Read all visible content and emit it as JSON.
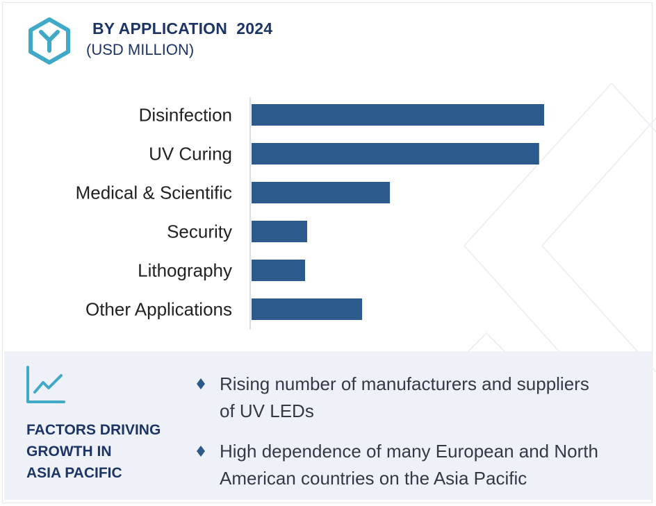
{
  "header": {
    "title": "BY APPLICATION  2024",
    "subtitle": "(USD MILLION)"
  },
  "colors": {
    "bar": "#2d5a8c",
    "heading": "#1d3566",
    "accent": "#3fa9c7",
    "panel_bg": "#eef1f7",
    "body_text": "#333a45"
  },
  "icons": {
    "logo": "hexagon-y-logo-icon",
    "factors": "trend-line-chart-icon",
    "bullet": "diamond-bullet-icon"
  },
  "chart_data": {
    "type": "bar",
    "orientation": "horizontal",
    "title": "BY APPLICATION  2024",
    "subtitle": "(USD MILLION)",
    "categories": [
      "Disinfection",
      "UV Curing",
      "Medical & Scientific",
      "Security",
      "Lithography",
      "Other Applications"
    ],
    "values": [
      100,
      98.3,
      47.3,
      19.0,
      18.3,
      37.8
    ],
    "value_axis": {
      "shown": false,
      "range": [
        0,
        100
      ]
    },
    "grid": false,
    "legend": "none"
  },
  "factors": {
    "title_lines": [
      "FACTORS DRIVING",
      "GROWTH IN",
      "ASIA PACIFIC"
    ],
    "bullets": [
      {
        "lines": [
          "Rising number of manufacturers and suppliers",
          "of UV LEDs"
        ]
      },
      {
        "lines": [
          "High dependence of many European and North",
          "American countries on the Asia Pacific"
        ]
      }
    ]
  }
}
